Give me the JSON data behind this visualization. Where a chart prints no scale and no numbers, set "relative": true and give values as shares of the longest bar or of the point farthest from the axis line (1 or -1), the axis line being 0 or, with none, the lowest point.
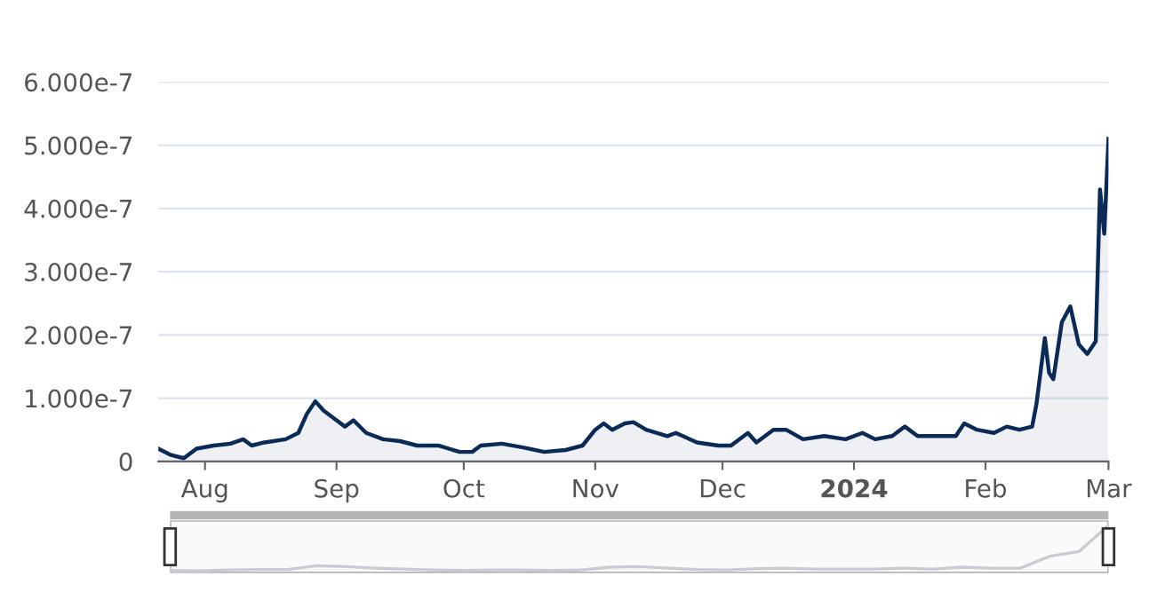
{
  "chart_data": [
    {
      "type": "area",
      "grid": "y",
      "line_style": "solid",
      "xlim": [
        "2023-07-21",
        "2024-03-01"
      ],
      "xticks": [
        {
          "value": "2023-08-01",
          "label": "Aug"
        },
        {
          "value": "2023-09-01",
          "label": "Sep"
        },
        {
          "value": "2023-10-01",
          "label": "Oct"
        },
        {
          "value": "2023-11-01",
          "label": "Nov"
        },
        {
          "value": "2023-12-01",
          "label": "Dec"
        },
        {
          "value": "2024-01-01",
          "label": "2024"
        },
        {
          "value": "2024-02-01",
          "label": "Feb"
        },
        {
          "value": "2024-03-01",
          "label": "Mar"
        }
      ],
      "ylim": [
        0,
        6e-07
      ],
      "yticks": [
        0,
        {
          "value": 1e-07,
          "label": "1.000e-7"
        },
        {
          "value": 2e-07,
          "label": "2.000e-7"
        },
        {
          "value": 3e-07,
          "label": "3.000e-7"
        },
        {
          "value": 4e-07,
          "label": "4.000e-7"
        },
        {
          "value": 5e-07,
          "label": "5.000e-7"
        },
        {
          "value": 6e-07,
          "label": "6.000e-7"
        }
      ],
      "x": [
        "2023-07-21",
        "2023-07-24",
        "2023-07-27",
        "2023-07-30",
        "2023-08-03",
        "2023-08-07",
        "2023-08-10",
        "2023-08-12",
        "2023-08-15",
        "2023-08-20",
        "2023-08-23",
        "2023-08-25",
        "2023-08-27",
        "2023-08-29",
        "2023-09-01",
        "2023-09-03",
        "2023-09-05",
        "2023-09-08",
        "2023-09-12",
        "2023-09-16",
        "2023-09-20",
        "2023-09-25",
        "2023-09-30",
        "2023-10-03",
        "2023-10-05",
        "2023-10-10",
        "2023-10-15",
        "2023-10-20",
        "2023-10-25",
        "2023-10-29",
        "2023-11-01",
        "2023-11-03",
        "2023-11-05",
        "2023-11-08",
        "2023-11-10",
        "2023-11-13",
        "2023-11-18",
        "2023-11-20",
        "2023-11-25",
        "2023-11-30",
        "2023-12-03",
        "2023-12-07",
        "2023-12-09",
        "2023-12-13",
        "2023-12-16",
        "2023-12-20",
        "2023-12-25",
        "2023-12-30",
        "2024-01-03",
        "2024-01-06",
        "2024-01-10",
        "2024-01-13",
        "2024-01-16",
        "2024-01-20",
        "2024-01-25",
        "2024-01-27",
        "2024-01-30",
        "2024-02-03",
        "2024-02-06",
        "2024-02-09",
        "2024-02-12",
        "2024-02-13",
        "2024-02-15",
        "2024-02-16",
        "2024-02-17",
        "2024-02-19",
        "2024-02-21",
        "2024-02-23",
        "2024-02-25",
        "2024-02-27",
        "2024-02-28",
        "2024-02-29",
        "2024-03-01"
      ],
      "series": [
        {
          "color": "#0b2a55",
          "values": [
            2e-08,
            1e-08,
            5e-09,
            2e-08,
            2.5e-08,
            2.8e-08,
            3.5e-08,
            2.5e-08,
            3e-08,
            3.5e-08,
            4.5e-08,
            7.5e-08,
            9.5e-08,
            8e-08,
            6.5e-08,
            5.5e-08,
            6.5e-08,
            4.5e-08,
            3.5e-08,
            3.2e-08,
            2.5e-08,
            2.5e-08,
            1.5e-08,
            1.5e-08,
            2.5e-08,
            2.8e-08,
            2.2e-08,
            1.5e-08,
            1.8e-08,
            2.5e-08,
            5e-08,
            6e-08,
            5e-08,
            6e-08,
            6.2e-08,
            5e-08,
            4e-08,
            4.5e-08,
            3e-08,
            2.5e-08,
            2.5e-08,
            4.5e-08,
            3e-08,
            5e-08,
            5e-08,
            3.5e-08,
            4e-08,
            3.5e-08,
            4.5e-08,
            3.5e-08,
            4e-08,
            5.5e-08,
            4e-08,
            4e-08,
            4e-08,
            6e-08,
            5e-08,
            4.5e-08,
            5.5e-08,
            5e-08,
            5.5e-08,
            9e-08,
            1.95e-07,
            1.4e-07,
            1.3e-07,
            2.2e-07,
            2.45e-07,
            1.85e-07,
            1.7e-07,
            1.9e-07,
            4.3e-07,
            3.6e-07,
            5.1e-07
          ]
        }
      ]
    },
    {
      "type": "line",
      "relative": true,
      "categories": [
        null,
        null,
        null,
        null,
        null,
        null,
        null,
        null,
        null,
        null,
        null,
        null,
        null,
        null,
        null,
        null,
        null,
        null,
        null,
        null,
        null,
        null,
        null,
        null,
        null,
        null,
        null,
        null,
        null,
        null,
        null,
        null,
        null
      ],
      "series": [
        {
          "color": "#c8ccd2",
          "values": [
            0.05,
            0.04,
            0.06,
            0.07,
            0.07,
            0.15,
            0.13,
            0.1,
            0.08,
            0.06,
            0.05,
            0.06,
            0.06,
            0.05,
            0.06,
            0.12,
            0.13,
            0.1,
            0.07,
            0.06,
            0.09,
            0.1,
            0.08,
            0.08,
            0.08,
            0.1,
            0.08,
            0.12,
            0.1,
            0.1,
            0.35,
            0.45,
            1
          ]
        }
      ]
    }
  ]
}
